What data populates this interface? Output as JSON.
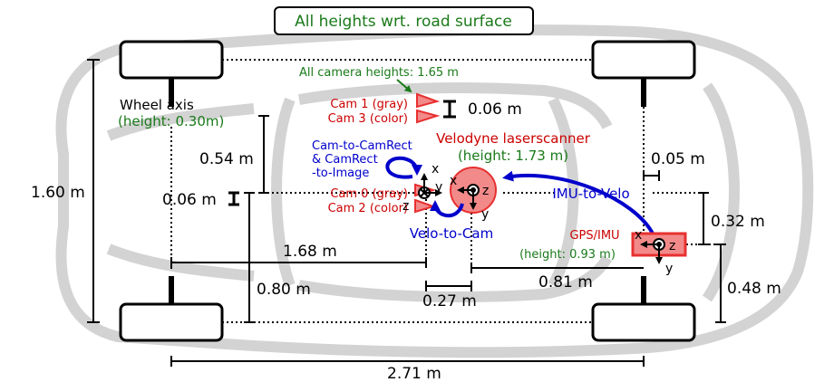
{
  "title": "All heights wrt. road surface",
  "camera_heights": "All camera heights: 1.65 m",
  "wheel_axis": {
    "line1": "Wheel axis",
    "line2": "(height: 0.30m)"
  },
  "cam13": {
    "line1": "Cam 1 (gray)",
    "line2": "Cam 3 (color)"
  },
  "cam02": {
    "line1": "Cam 0 (gray)",
    "line2": "Cam 2 (color)"
  },
  "velodyne": {
    "line1": "Velodyne laserscanner",
    "line2": "(height: 1.73 m)"
  },
  "gps": {
    "line1": "GPS/IMU",
    "line2": "(height: 0.93 m)"
  },
  "cam_to_camrect": {
    "line1": "Cam-to-CamRect",
    "line2": "& CamRect",
    "line3": "-to-Image"
  },
  "velo_to_cam": "Velo-to-Cam",
  "imu_to_velo": "IMU-to-Velo",
  "dims": {
    "d_006_cams": "0.06 m",
    "d_054": "0.54 m",
    "d_006_left": "0.06 m",
    "d_160": "1.60 m",
    "d_168": "1.68 m",
    "d_080": "0.80 m",
    "d_027": "0.27 m",
    "d_081": "0.81 m",
    "d_005": "0.05 m",
    "d_032": "0.32 m",
    "d_048": "0.48 m",
    "d_271": "2.71 m"
  },
  "axis_letters": {
    "x": "x",
    "y": "y",
    "z": "z"
  },
  "colors": {
    "car": "#d3d3d3",
    "red_label": "#cc0000",
    "green_label": "#1a7a1a",
    "blue_label": "#0000cc",
    "sensor_fill": "#f28a8a",
    "sensor_red": "#e83030"
  }
}
